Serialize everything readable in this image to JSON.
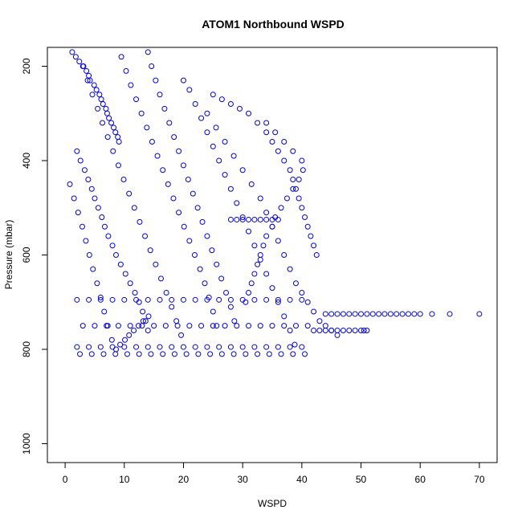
{
  "chart_data": {
    "type": "scatter",
    "title": "ATOM1 Northbound WSPD",
    "xlabel": "WSPD",
    "ylabel": "Pressure (mbar)",
    "xlim": [
      -3,
      73
    ],
    "ylim": [
      1040,
      160
    ],
    "y_reversed": true,
    "x_ticks": [
      0,
      10,
      20,
      30,
      40,
      50,
      60,
      70
    ],
    "y_ticks": [
      200,
      400,
      600,
      800,
      1000
    ],
    "x_tick_labels": [
      "0",
      "10",
      "20",
      "30",
      "40",
      "50",
      "60",
      "70"
    ],
    "y_tick_labels": [
      "200",
      "400",
      "600",
      "800",
      "1000"
    ],
    "marker": "open-circle",
    "grid": false,
    "legend": "none",
    "series": [
      {
        "color": "#0000ff",
        "x": [
          1.2,
          1.8,
          2.4,
          3.1,
          3.6,
          4.0,
          4.2,
          4.9,
          5.3,
          5.8,
          6.1,
          6.4,
          6.9,
          7.1,
          7.4,
          7.8,
          8.2,
          8.5,
          8.9,
          9.1,
          2.0,
          2.6,
          3.3,
          3.9,
          4.5,
          5.0,
          5.6,
          6.2,
          6.7,
          7.3,
          8.0,
          8.6,
          9.4,
          10.2,
          11.0,
          11.8,
          12.5,
          13.1,
          13.6,
          14.0,
          0.8,
          1.5,
          2.2,
          2.9,
          3.5,
          4.1,
          4.7,
          5.4,
          6.0,
          6.6,
          7.2,
          7.9,
          8.6,
          9.3,
          10.1,
          10.8,
          11.6,
          12.4,
          13.2,
          14.1,
          3.0,
          3.8,
          4.6,
          5.5,
          6.3,
          7.2,
          8.1,
          9.0,
          9.9,
          10.8,
          11.7,
          12.6,
          13.5,
          14.4,
          15.3,
          16.2,
          17.1,
          18.0,
          18.8,
          19.6,
          9.5,
          10.3,
          11.1,
          12.0,
          12.9,
          13.8,
          14.7,
          15.6,
          16.5,
          17.4,
          18.3,
          19.2,
          20.1,
          21.0,
          21.9,
          22.8,
          23.6,
          24.3,
          25.0,
          25.6,
          14.0,
          14.6,
          15.3,
          16.0,
          16.8,
          17.6,
          18.4,
          19.2,
          20.0,
          20.8,
          21.6,
          22.4,
          23.2,
          24.0,
          24.8,
          25.6,
          26.4,
          27.2,
          28.0,
          28.6,
          20.0,
          21.0,
          22.0,
          23.0,
          24.0,
          25.0,
          26.0,
          27.0,
          28.0,
          29.0,
          30.0,
          31.0,
          32.0,
          33.0,
          34.0,
          35.0,
          36.0,
          37.0,
          38.0,
          38.8,
          25.0,
          26.5,
          28.0,
          29.5,
          31.0,
          32.5,
          34.0,
          35.0,
          36.0,
          37.0,
          38.0,
          38.5,
          39.0,
          39.5,
          40.0,
          40.5,
          41.0,
          41.5,
          42.0,
          42.5,
          24.0,
          25.5,
          27.0,
          28.5,
          30.0,
          31.5,
          33.0,
          34.0,
          35.0,
          36.0,
          37.0,
          38.0,
          39.0,
          40.0,
          41.0,
          42.0,
          43.0,
          44.0,
          45.0,
          46.0,
          34.0,
          35.5,
          37.0,
          38.5,
          40.0,
          40.2,
          39.5,
          38.5,
          37.5,
          36.5,
          35.5,
          35.0,
          34.0,
          33.5,
          33.0,
          32.5,
          32.0,
          31.5,
          31.0,
          30.5,
          44.0,
          45.0,
          46.0,
          47.0,
          48.0,
          49.0,
          50.0,
          51.0,
          52.0,
          53.0,
          54.0,
          55.0,
          56.0,
          57.0,
          58.0,
          59.0,
          60.0,
          62.0,
          65.0,
          70.0,
          2.0,
          4.0,
          6.0,
          8.0,
          10.0,
          12.0,
          14.0,
          16.0,
          18.0,
          20.0,
          22.0,
          24.0,
          26.0,
          28.0,
          30.0,
          32.0,
          34.0,
          36.0,
          38.0,
          40.0,
          3.0,
          5.0,
          7.0,
          9.0,
          11.0,
          13.0,
          15.0,
          17.0,
          19.0,
          21.0,
          23.0,
          25.0,
          27.0,
          29.0,
          31.0,
          33.0,
          35.0,
          37.0,
          39.0,
          41.0,
          2.0,
          4.0,
          6.0,
          8.0,
          10.0,
          12.0,
          14.0,
          16.0,
          18.0,
          20.0,
          22.0,
          24.0,
          26.0,
          28.0,
          30.0,
          32.0,
          34.0,
          36.0,
          38.0,
          40.0,
          2.5,
          4.5,
          6.5,
          8.5,
          10.5,
          12.5,
          14.5,
          16.5,
          18.5,
          20.5,
          22.5,
          24.5,
          26.5,
          28.5,
          30.5,
          32.5,
          34.5,
          36.5,
          38.5,
          40.5,
          28.0,
          29.0,
          30.0,
          31.0,
          32.0,
          33.0,
          34.0,
          35.0,
          36.0,
          42.0,
          43.0,
          44.0,
          45.0,
          46.0,
          47.0,
          48.0,
          49.0,
          50.0,
          50.5,
          51.0
        ],
        "y": [
          170,
          180,
          190,
          200,
          210,
          220,
          230,
          240,
          250,
          260,
          270,
          280,
          290,
          300,
          310,
          320,
          330,
          340,
          350,
          360,
          380,
          400,
          420,
          440,
          460,
          480,
          500,
          520,
          540,
          560,
          580,
          600,
          620,
          640,
          660,
          680,
          700,
          720,
          740,
          760,
          450,
          480,
          510,
          540,
          570,
          600,
          630,
          660,
          690,
          720,
          750,
          780,
          800,
          790,
          780,
          770,
          760,
          750,
          740,
          730,
          200,
          230,
          260,
          290,
          320,
          350,
          380,
          410,
          440,
          470,
          500,
          530,
          560,
          590,
          620,
          650,
          680,
          710,
          740,
          770,
          180,
          210,
          240,
          270,
          300,
          330,
          360,
          390,
          420,
          450,
          480,
          510,
          540,
          570,
          600,
          630,
          660,
          690,
          720,
          750,
          170,
          200,
          230,
          260,
          290,
          320,
          350,
          380,
          410,
          440,
          470,
          500,
          530,
          560,
          590,
          620,
          650,
          680,
          710,
          740,
          230,
          250,
          280,
          310,
          340,
          370,
          400,
          430,
          460,
          490,
          520,
          550,
          580,
          610,
          640,
          670,
          700,
          730,
          760,
          790,
          260,
          270,
          280,
          290,
          300,
          320,
          340,
          360,
          380,
          400,
          420,
          440,
          460,
          480,
          500,
          520,
          540,
          560,
          580,
          600,
          300,
          330,
          360,
          390,
          420,
          450,
          480,
          510,
          540,
          570,
          600,
          630,
          660,
          680,
          700,
          720,
          740,
          750,
          760,
          770,
          320,
          340,
          360,
          380,
          400,
          420,
          440,
          460,
          480,
          500,
          520,
          540,
          560,
          580,
          600,
          620,
          640,
          660,
          680,
          700,
          725,
          725,
          725,
          725,
          725,
          725,
          725,
          725,
          725,
          725,
          725,
          725,
          725,
          725,
          725,
          725,
          725,
          725,
          725,
          725,
          695,
          695,
          695,
          695,
          695,
          695,
          695,
          695,
          695,
          695,
          695,
          695,
          695,
          695,
          695,
          695,
          695,
          695,
          695,
          695,
          750,
          750,
          750,
          750,
          750,
          750,
          750,
          750,
          750,
          750,
          750,
          750,
          750,
          750,
          750,
          750,
          750,
          750,
          750,
          750,
          795,
          795,
          795,
          795,
          795,
          795,
          795,
          795,
          795,
          795,
          795,
          795,
          795,
          795,
          795,
          795,
          795,
          795,
          795,
          795,
          810,
          810,
          810,
          810,
          810,
          810,
          810,
          810,
          810,
          810,
          810,
          810,
          810,
          810,
          810,
          810,
          810,
          810,
          810,
          810,
          525,
          525,
          525,
          525,
          525,
          525,
          525,
          525,
          525,
          760,
          760,
          760,
          760,
          760,
          760,
          760,
          760,
          760,
          760,
          760
        ]
      }
    ]
  }
}
